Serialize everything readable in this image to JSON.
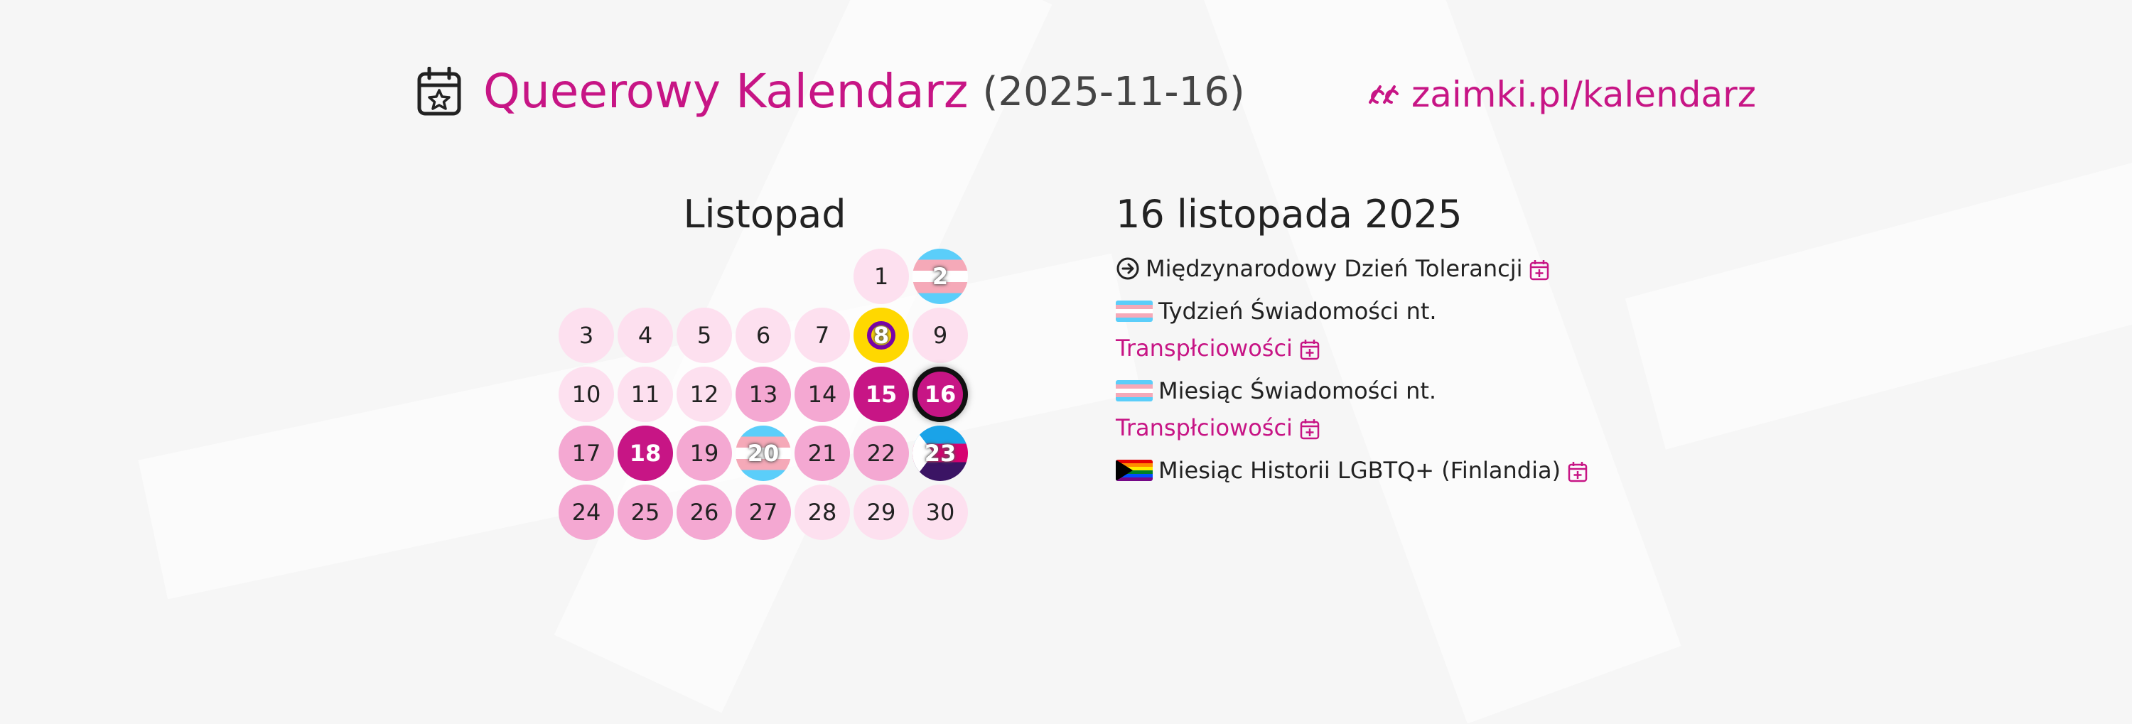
{
  "header": {
    "title": "Queerowy Kalendarz",
    "date": "(2025-11-16)",
    "site": "zaimki.pl/kalendarz",
    "icons": {
      "calendar": "calendar-star-icon",
      "logo": "zaimki-logo-icon"
    }
  },
  "month": {
    "name": "Listopad",
    "days": [
      {
        "n": "1",
        "style": "light"
      },
      {
        "n": "2",
        "style": "trans"
      },
      {
        "n": "3",
        "style": "light"
      },
      {
        "n": "4",
        "style": "light"
      },
      {
        "n": "5",
        "style": "light"
      },
      {
        "n": "6",
        "style": "light"
      },
      {
        "n": "7",
        "style": "light"
      },
      {
        "n": "8",
        "style": "intersex"
      },
      {
        "n": "9",
        "style": "light"
      },
      {
        "n": "10",
        "style": "light"
      },
      {
        "n": "11",
        "style": "light"
      },
      {
        "n": "12",
        "style": "light"
      },
      {
        "n": "13",
        "style": "mid"
      },
      {
        "n": "14",
        "style": "mid"
      },
      {
        "n": "15",
        "style": "strong"
      },
      {
        "n": "16",
        "style": "strong current"
      },
      {
        "n": "17",
        "style": "mid"
      },
      {
        "n": "18",
        "style": "strong"
      },
      {
        "n": "19",
        "style": "mid"
      },
      {
        "n": "20",
        "style": "trans"
      },
      {
        "n": "21",
        "style": "mid"
      },
      {
        "n": "22",
        "style": "mid"
      },
      {
        "n": "23",
        "style": "flag23"
      },
      {
        "n": "24",
        "style": "mid"
      },
      {
        "n": "25",
        "style": "mid"
      },
      {
        "n": "26",
        "style": "mid"
      },
      {
        "n": "27",
        "style": "mid"
      },
      {
        "n": "28",
        "style": "light"
      },
      {
        "n": "29",
        "style": "light"
      },
      {
        "n": "30",
        "style": "light"
      }
    ]
  },
  "events": {
    "date_title": "16 listopada 2025",
    "items": [
      {
        "icon": "arrow-circle-right-icon",
        "text": "Międzynarodowy Dzień Tolerancji",
        "text2": ""
      },
      {
        "icon": "transgender-flag-icon",
        "text": "Tydzień Świadomości nt.",
        "text2": "Transpłciowości"
      },
      {
        "icon": "transgender-flag-icon",
        "text": "Miesiąc Świadomości nt.",
        "text2": "Transpłciowości"
      },
      {
        "icon": "progress-pride-flag-icon",
        "text": "Miesiąc Historii LGBTQ+ (Finlandia)",
        "text2": ""
      }
    ]
  },
  "colors": {
    "accent": "#c71585",
    "light": "#fde0ef",
    "mid": "#f4a8d2"
  }
}
